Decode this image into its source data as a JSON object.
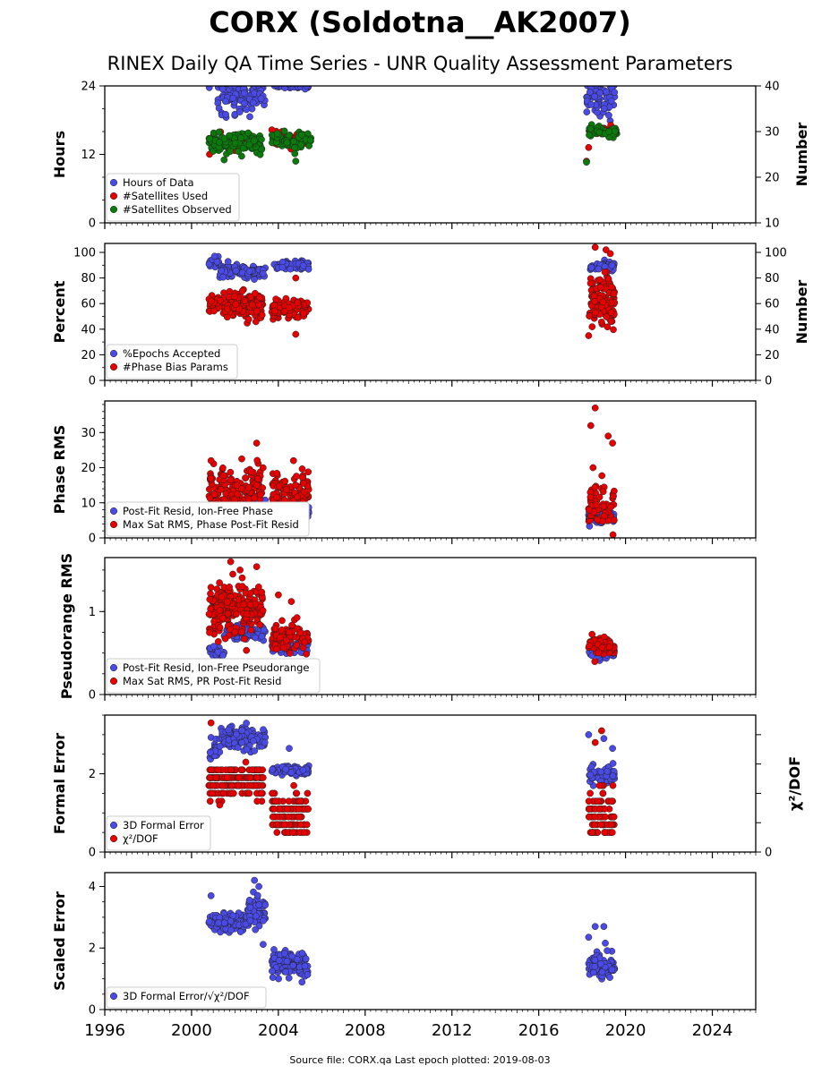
{
  "figure": {
    "title": "CORX (Soldotna__AK2007)",
    "subtitle": "RINEX Daily QA Time Series - UNR Quality Assessment Parameters",
    "footer": "Source file: CORX.qa Last epoch plotted: 2019-08-03",
    "x_ticks": [
      "1996",
      "2000",
      "2004",
      "2008",
      "2012",
      "2016",
      "2020",
      "2024"
    ],
    "x_range": [
      1996,
      2026
    ],
    "colors": {
      "blue": "#4a4ae6",
      "red": "#e60000",
      "green": "#0a7a0a",
      "edge": "#222222"
    }
  },
  "chart_data": [
    {
      "type": "scatter",
      "ylabel": "Hours",
      "right_ylabel": "Number",
      "ylim": [
        0,
        24
      ],
      "yticks": [
        "0",
        "12",
        "24"
      ],
      "right_ylim": [
        10,
        40
      ],
      "right_yticks": [
        "10",
        "20",
        "30",
        "40"
      ],
      "series": [
        {
          "name": "Hours of Data",
          "color": "blue",
          "axis": "left",
          "clusters": [
            [
              2000.8,
              2003.3,
              23.8,
              0.35,
              30
            ],
            [
              2001.2,
              2003.4,
              21.8,
              0.5,
              55
            ],
            [
              2001.2,
              2002.8,
              19.8,
              0.9,
              15
            ],
            [
              2003.8,
              2005.4,
              23.9,
              0.2,
              35
            ],
            [
              2018.2,
              2019.5,
              22.5,
              2.0,
              70
            ]
          ]
        },
        {
          "name": "#Satellites Used",
          "color": "red",
          "axis": "right",
          "clusters": [
            [
              2000.8,
              2003.2,
              27.8,
              0.8,
              40
            ],
            [
              2003.7,
              2005.4,
              28.2,
              0.8,
              30
            ],
            [
              2018.3,
              2019.5,
              30.0,
              0.5,
              35
            ]
          ],
          "points": [
            [
              2018.3,
              26.5
            ],
            [
              2018.2,
              23.5
            ]
          ]
        },
        {
          "name": "#Satellites Observed",
          "color": "green",
          "axis": "right",
          "clusters": [
            [
              2000.8,
              2003.3,
              27.5,
              1.0,
              140
            ],
            [
              2003.7,
              2005.5,
              28.0,
              1.0,
              80
            ],
            [
              2018.3,
              2019.6,
              30.0,
              0.5,
              70
            ]
          ],
          "points": [
            [
              2018.2,
              23.3
            ],
            [
              2001.5,
              23.8
            ],
            [
              2004.8,
              23.5
            ]
          ]
        }
      ]
    },
    {
      "type": "scatter",
      "ylabel": "Percent",
      "right_ylabel": "Number",
      "ylim": [
        0,
        107
      ],
      "yticks": [
        "0",
        "20",
        "40",
        "60",
        "80",
        "100"
      ],
      "right_ylim": [
        0,
        107
      ],
      "right_yticks": [
        "0",
        "20",
        "40",
        "60",
        "80",
        "100"
      ],
      "series": [
        {
          "name": "%Epochs Accepted",
          "color": "blue",
          "axis": "left",
          "clusters": [
            [
              2000.8,
              2001.3,
              92,
              2,
              25
            ],
            [
              2001.3,
              2003.4,
              85,
              2.5,
              110
            ],
            [
              2003.8,
              2005.4,
              90,
              1.5,
              70
            ],
            [
              2018.3,
              2019.5,
              89,
              2,
              45
            ]
          ]
        },
        {
          "name": "#Phase Bias Params",
          "color": "red",
          "axis": "left",
          "clusters": [
            [
              2000.8,
              2003.3,
              59,
              5,
              170
            ],
            [
              2003.7,
              2005.4,
              55,
              4,
              100
            ],
            [
              2018.3,
              2019.5,
              62,
              10,
              110
            ]
          ],
          "points": [
            [
              2004.8,
              36
            ],
            [
              2004.8,
              80
            ],
            [
              2018.3,
              35
            ],
            [
              2018.6,
              104
            ],
            [
              2019.1,
              102
            ],
            [
              2019.3,
              99
            ]
          ]
        }
      ]
    },
    {
      "type": "scatter",
      "ylabel": "Phase RMS",
      "ylim": [
        0,
        39
      ],
      "yticks": [
        "0",
        "10",
        "20",
        "30"
      ],
      "series": [
        {
          "name": "Post-Fit Resid, Ion-Free Phase",
          "color": "blue",
          "axis": "left",
          "clusters": [
            [
              2000.8,
              2003.4,
              8,
              1.3,
              120
            ],
            [
              2003.7,
              2005.4,
              7,
              1.2,
              80
            ],
            [
              2018.3,
              2019.5,
              6,
              0.8,
              70
            ]
          ]
        },
        {
          "name": "Max Sat RMS, Phase Post-Fit Resid",
          "color": "red",
          "axis": "left",
          "clusters": [
            [
              2000.8,
              2003.3,
              13,
              3.5,
              180
            ],
            [
              2003.7,
              2005.4,
              12,
              3.5,
              110
            ],
            [
              2018.3,
              2019.5,
              9,
              3.5,
              60
            ]
          ],
          "points": [
            [
              2018.6,
              37
            ],
            [
              2018.4,
              32
            ],
            [
              2019.2,
              29
            ],
            [
              2019.4,
              27
            ],
            [
              2003.0,
              27
            ],
            [
              2018.5,
              20
            ],
            [
              2000.9,
              22
            ],
            [
              2004.7,
              22
            ]
          ]
        }
      ]
    },
    {
      "type": "scatter",
      "ylabel": "Pseudorange RMS",
      "ylim": [
        0,
        1.65
      ],
      "yticks": [
        "0",
        "1"
      ],
      "series": [
        {
          "name": "Post-Fit Resid, Ion-Free Pseudorange",
          "color": "blue",
          "axis": "left",
          "clusters": [
            [
              2000.8,
              2001.5,
              0.52,
              0.04,
              25
            ],
            [
              2001.5,
              2003.4,
              0.74,
              0.05,
              70
            ],
            [
              2003.7,
              2005.4,
              0.58,
              0.05,
              70
            ],
            [
              2018.3,
              2019.5,
              0.5,
              0.03,
              60
            ]
          ]
        },
        {
          "name": "Max Sat RMS, PR Post-Fit Resid",
          "color": "red",
          "axis": "left",
          "clusters": [
            [
              2000.8,
              2003.3,
              1.03,
              0.15,
              220
            ],
            [
              2003.7,
              2005.4,
              0.7,
              0.08,
              90
            ],
            [
              2018.3,
              2019.5,
              0.6,
              0.06,
              70
            ]
          ],
          "points": [
            [
              2001.8,
              1.6
            ],
            [
              2001.9,
              1.45
            ],
            [
              2003.0,
              1.54
            ],
            [
              2004.0,
              1.2
            ],
            [
              2004.6,
              1.12
            ]
          ]
        }
      ]
    },
    {
      "type": "scatter",
      "ylabel": "Formal Error",
      "right_ylabel": "χ²/DOF",
      "ylim": [
        0,
        3.5
      ],
      "yticks": [
        "0",
        "2"
      ],
      "right_yticks": [
        "0"
      ],
      "series": [
        {
          "name": "3D Formal Error",
          "color": "blue",
          "axis": "left",
          "clusters": [
            [
              2000.8,
              2001.3,
              2.6,
              0.12,
              30
            ],
            [
              2001.3,
              2003.4,
              2.9,
              0.15,
              130
            ],
            [
              2003.7,
              2005.4,
              2.1,
              0.05,
              80
            ],
            [
              2018.3,
              2019.5,
              1.95,
              0.12,
              60
            ]
          ],
          "points": [
            [
              2018.3,
              3.0
            ],
            [
              2019.0,
              2.9
            ],
            [
              2019.4,
              2.65
            ],
            [
              2004.5,
              2.65
            ]
          ]
        },
        {
          "name": "χ²/DOF",
          "color": "red",
          "axis": "left",
          "levels": [
            0.5,
            0.7,
            0.9,
            1.1,
            1.3,
            1.5,
            1.7,
            1.9,
            2.1
          ],
          "clusters": [
            [
              2000.8,
              2003.3,
              1.8,
              0.2,
              200
            ],
            [
              2003.7,
              2005.4,
              0.95,
              0.3,
              120
            ],
            [
              2018.3,
              2019.5,
              0.95,
              0.35,
              80
            ]
          ],
          "points": [
            [
              2000.9,
              3.3
            ],
            [
              2002.5,
              2.3
            ],
            [
              2018.9,
              3.1
            ],
            [
              2018.6,
              2.8
            ],
            [
              2001.3,
              1.2
            ]
          ]
        }
      ]
    },
    {
      "type": "scatter",
      "ylabel": "Scaled Error",
      "ylim": [
        0,
        4.45
      ],
      "yticks": [
        "0",
        "2",
        "4"
      ],
      "series": [
        {
          "name": "3D Formal Error/√χ²/DOF",
          "color": "blue",
          "axis": "left",
          "clusters": [
            [
              2000.8,
              2002.5,
              2.8,
              0.15,
              120
            ],
            [
              2002.5,
              2003.4,
              3.2,
              0.35,
              60
            ],
            [
              2003.7,
              2005.4,
              1.5,
              0.2,
              110
            ],
            [
              2018.3,
              2019.5,
              1.4,
              0.2,
              80
            ]
          ],
          "points": [
            [
              2002.9,
              4.2
            ],
            [
              2003.1,
              4.0
            ],
            [
              2000.9,
              3.7
            ],
            [
              2018.6,
              2.7
            ],
            [
              2019.0,
              2.7
            ],
            [
              2018.3,
              2.35
            ]
          ]
        }
      ]
    }
  ]
}
